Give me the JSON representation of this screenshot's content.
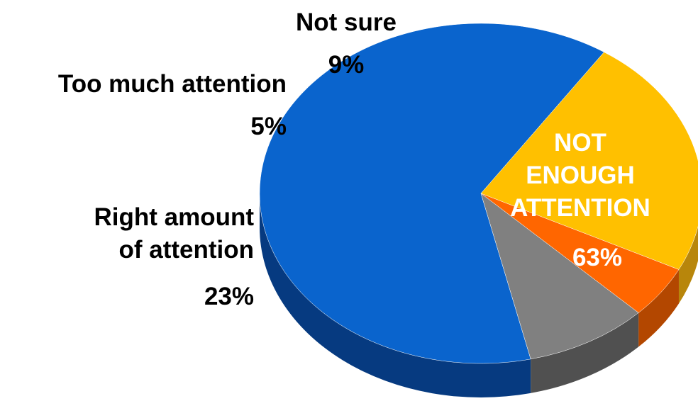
{
  "chart_data": {
    "type": "pie",
    "slices": [
      {
        "label_lines": [
          "NOT",
          "ENOUGH",
          "ATTENTION"
        ],
        "value": 63,
        "display": "63%",
        "color": "#0a64cd",
        "side_color": "#063a80",
        "label_color": "#ffffff"
      },
      {
        "label_lines": [
          "Right amount",
          "of attention"
        ],
        "value": 23,
        "display": "23%",
        "color": "#ffc000",
        "side_color": "#b8860b",
        "label_color": "#000000"
      },
      {
        "label_lines": [
          "Too much attention"
        ],
        "value": 5,
        "display": "5%",
        "color": "#ff6600",
        "side_color": "#b34700",
        "label_color": "#000000"
      },
      {
        "label_lines": [
          "Not sure"
        ],
        "value": 9,
        "display": "9%",
        "color": "#808080",
        "side_color": "#505050",
        "label_color": "#000000"
      }
    ]
  }
}
